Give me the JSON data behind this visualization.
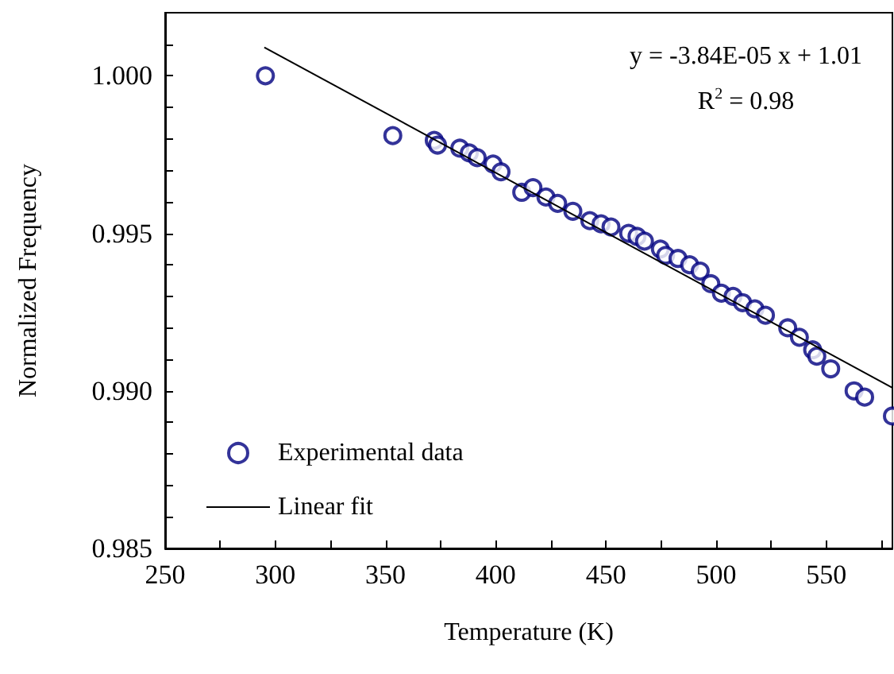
{
  "chart_data": {
    "type": "scatter",
    "xlabel": "Temperature (K)",
    "ylabel": "Normalized Frequency",
    "annotations": [
      "y = -3.84E-05 x + 1.01",
      "R$^{2}$ = 0.98"
    ],
    "xlim": [
      250,
      580
    ],
    "xticks": [
      250,
      {
        "value": 275,
        "label": null
      },
      300,
      {
        "value": 325,
        "label": null
      },
      350,
      {
        "value": 375,
        "label": null
      },
      400,
      {
        "value": 425,
        "label": null
      },
      450,
      {
        "value": 475,
        "label": null
      },
      500,
      {
        "value": 525,
        "label": null
      },
      550,
      {
        "value": 575,
        "label": null
      }
    ],
    "ylim": [
      0.985,
      1.002
    ],
    "yticks": [
      {
        "value": 0.985,
        "label": "0.985"
      },
      {
        "value": 0.986,
        "label": null
      },
      {
        "value": 0.987,
        "label": null
      },
      {
        "value": 0.988,
        "label": null
      },
      {
        "value": 0.989,
        "label": null
      },
      {
        "value": 0.99,
        "label": "0.990"
      },
      {
        "value": 0.991,
        "label": null
      },
      {
        "value": 0.992,
        "label": null
      },
      {
        "value": 0.993,
        "label": null
      },
      {
        "value": 0.994,
        "label": null
      },
      {
        "value": 0.995,
        "label": "0.995"
      },
      {
        "value": 0.996,
        "label": null
      },
      {
        "value": 0.997,
        "label": null
      },
      {
        "value": 0.998,
        "label": null
      },
      {
        "value": 0.999,
        "label": null
      },
      {
        "value": 1.0,
        "label": "1.000"
      },
      {
        "value": 1.001,
        "label": null
      }
    ],
    "grid": false,
    "legend": "bottom left",
    "series": [
      {
        "name": "Experimental data",
        "marker": "circle",
        "color": "#000080",
        "x": [
          295.5,
          353.3,
          372.1,
          373.6,
          383.7,
          388,
          391.6,
          398.8,
          402.4,
          411.8,
          416.9,
          422.8,
          428.1,
          435,
          442.7,
          447.8,
          452.3,
          460.3,
          464.1,
          467.5,
          474.7,
          477.1,
          482.7,
          488,
          492.8,
          497.6,
          502.4,
          507.7,
          512,
          517.6,
          522.4,
          532.5,
          537.8,
          543.8,
          545.7,
          552,
          562.6,
          567.4,
          580
        ],
        "values": [
          1.0,
          0.9981,
          0.99795,
          0.9978,
          0.9977,
          0.99755,
          0.9974,
          0.9972,
          0.99695,
          0.9963,
          0.99645,
          0.99615,
          0.99595,
          0.9957,
          0.9954,
          0.9953,
          0.9952,
          0.995,
          0.9949,
          0.99475,
          0.9945,
          0.9943,
          0.9942,
          0.994,
          0.9938,
          0.9934,
          0.9931,
          0.993,
          0.9928,
          0.9926,
          0.9924,
          0.992,
          0.9917,
          0.9913,
          0.9911,
          0.9907,
          0.99,
          0.9898,
          0.9892
        ]
      },
      {
        "name": "Linear fit",
        "type": "line",
        "marker": "none",
        "line_style": "solid",
        "color": "#000000",
        "x": [
          295,
          580
        ],
        "values": [
          1.0009,
          0.9901
        ]
      }
    ]
  }
}
